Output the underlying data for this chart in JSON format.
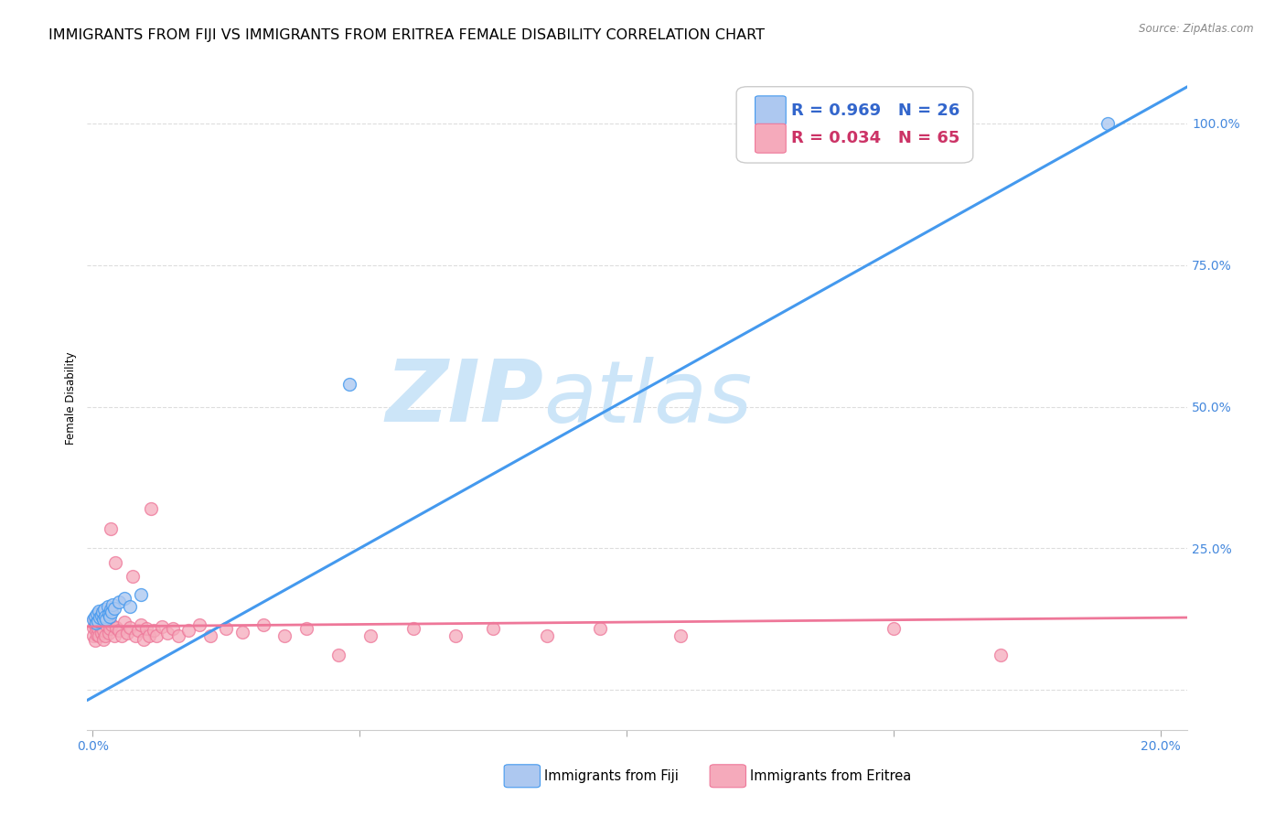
{
  "title": "IMMIGRANTS FROM FIJI VS IMMIGRANTS FROM ERITREA FEMALE DISABILITY CORRELATION CHART",
  "source": "Source: ZipAtlas.com",
  "ylabel": "Female Disability",
  "ytick_labels": [
    "",
    "25.0%",
    "50.0%",
    "75.0%",
    "100.0%"
  ],
  "ytick_values": [
    0.0,
    0.25,
    0.5,
    0.75,
    1.0
  ],
  "xlim": [
    -0.001,
    0.205
  ],
  "ylim": [
    -0.07,
    1.1
  ],
  "fiji_R": 0.969,
  "fiji_N": 26,
  "eritrea_R": 0.034,
  "eritrea_N": 65,
  "fiji_color": "#adc8f0",
  "eritrea_color": "#f5aabb",
  "fiji_line_color": "#4499ee",
  "eritrea_line_color": "#ee7799",
  "watermark_zip": "ZIP",
  "watermark_atlas": "atlas",
  "watermark_color": "#cce5f8",
  "fiji_scatter_x": [
    0.0002,
    0.0004,
    0.0006,
    0.0008,
    0.001,
    0.0012,
    0.0014,
    0.0016,
    0.0018,
    0.002,
    0.0022,
    0.0024,
    0.0026,
    0.0028,
    0.003,
    0.0032,
    0.0034,
    0.0036,
    0.0038,
    0.004,
    0.005,
    0.006,
    0.007,
    0.009,
    0.048,
    0.19
  ],
  "fiji_scatter_y": [
    0.125,
    0.13,
    0.118,
    0.135,
    0.122,
    0.14,
    0.128,
    0.132,
    0.138,
    0.125,
    0.142,
    0.13,
    0.125,
    0.148,
    0.135,
    0.13,
    0.142,
    0.138,
    0.15,
    0.145,
    0.155,
    0.162,
    0.148,
    0.168,
    0.54,
    1.0
  ],
  "eritrea_scatter_x": [
    0.0001,
    0.0002,
    0.0003,
    0.0004,
    0.0005,
    0.0006,
    0.0007,
    0.0008,
    0.001,
    0.0011,
    0.0012,
    0.0013,
    0.0015,
    0.0016,
    0.0018,
    0.002,
    0.0021,
    0.0022,
    0.0024,
    0.0026,
    0.0028,
    0.003,
    0.0032,
    0.0034,
    0.0036,
    0.004,
    0.0042,
    0.0045,
    0.005,
    0.0055,
    0.006,
    0.0065,
    0.007,
    0.0075,
    0.008,
    0.0085,
    0.009,
    0.0095,
    0.01,
    0.0105,
    0.011,
    0.0115,
    0.012,
    0.013,
    0.014,
    0.015,
    0.016,
    0.018,
    0.02,
    0.022,
    0.025,
    0.028,
    0.032,
    0.036,
    0.04,
    0.046,
    0.052,
    0.06,
    0.068,
    0.075,
    0.085,
    0.095,
    0.11,
    0.15,
    0.17
  ],
  "eritrea_scatter_y": [
    0.11,
    0.095,
    0.125,
    0.088,
    0.115,
    0.105,
    0.12,
    0.098,
    0.108,
    0.122,
    0.095,
    0.13,
    0.112,
    0.1,
    0.118,
    0.09,
    0.105,
    0.128,
    0.095,
    0.115,
    0.125,
    0.1,
    0.108,
    0.285,
    0.115,
    0.095,
    0.225,
    0.11,
    0.105,
    0.095,
    0.12,
    0.1,
    0.11,
    0.2,
    0.095,
    0.105,
    0.115,
    0.09,
    0.108,
    0.095,
    0.32,
    0.105,
    0.095,
    0.112,
    0.1,
    0.108,
    0.095,
    0.105,
    0.115,
    0.095,
    0.108,
    0.102,
    0.115,
    0.095,
    0.108,
    0.062,
    0.095,
    0.108,
    0.095,
    0.108,
    0.095,
    0.108,
    0.095,
    0.108,
    0.062
  ],
  "fiji_line_x": [
    -0.001,
    0.205
  ],
  "fiji_line_y": [
    -0.018,
    1.065
  ],
  "eritrea_line_x": [
    -0.001,
    0.205
  ],
  "eritrea_line_y": [
    0.112,
    0.128
  ],
  "grid_color": "#dddddd",
  "background_color": "#ffffff",
  "title_fontsize": 11.5,
  "axis_label_fontsize": 8.5,
  "tick_fontsize": 10,
  "legend_fontsize": 13
}
